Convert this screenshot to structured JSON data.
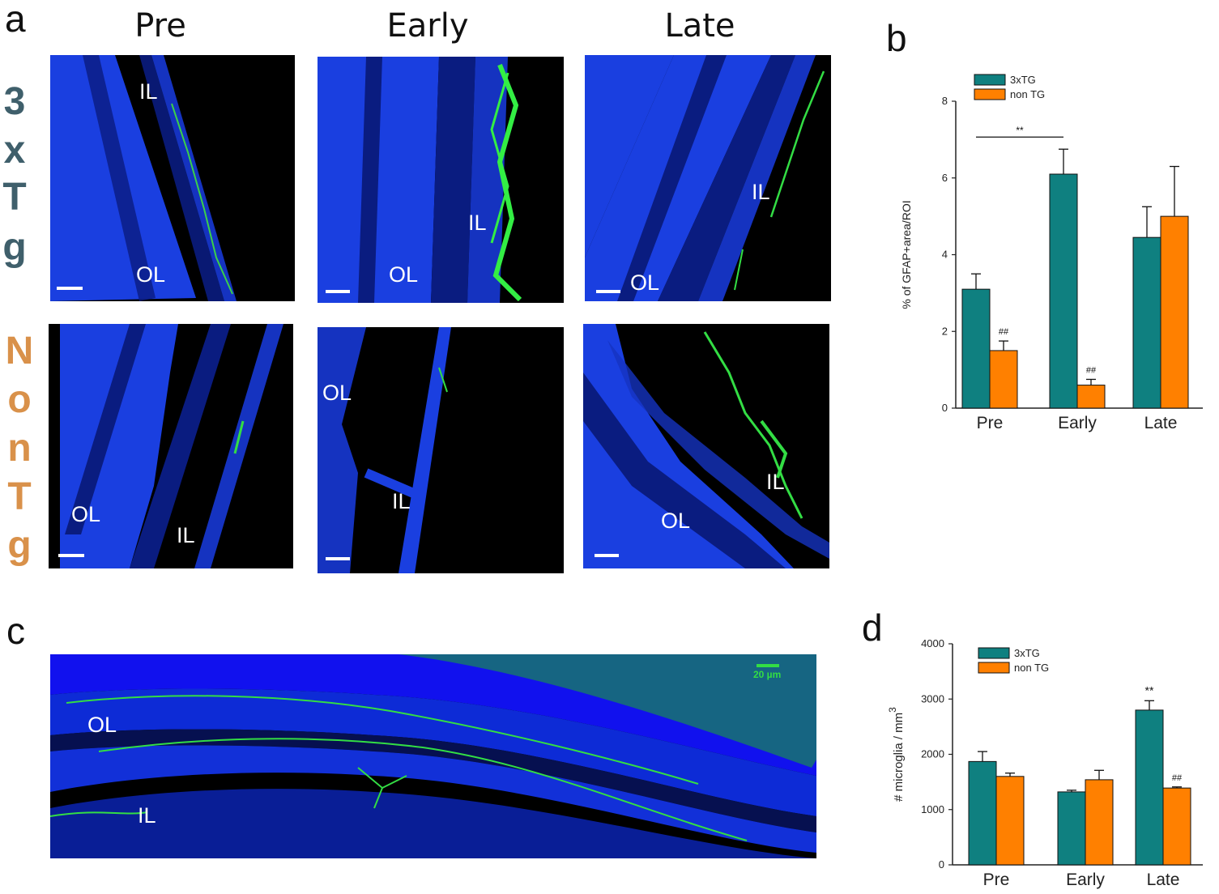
{
  "panels": {
    "a": "a",
    "b": "b",
    "c": "c",
    "d": "d"
  },
  "columns": [
    "Pre",
    "Early",
    "Late"
  ],
  "rows": {
    "top_letters": [
      "3",
      "x",
      "T",
      "g"
    ],
    "bottom_letters": [
      "N",
      "o",
      "n",
      "T",
      "g"
    ],
    "top_color": "#3f5f6b",
    "bottom_color": "#d9914a"
  },
  "tiles": [
    {
      "labels": [
        "IL",
        "OL"
      ]
    },
    {
      "labels": [
        "IL",
        "OL"
      ]
    },
    {
      "labels": [
        "IL",
        "OL"
      ]
    },
    {
      "labels": [
        "OL",
        "IL"
      ]
    },
    {
      "labels": [
        "OL",
        "IL"
      ]
    },
    {
      "labels": [
        "IL",
        "OL"
      ]
    }
  ],
  "panel_c": {
    "labels": [
      "OL",
      "IL"
    ],
    "scalebar_label": "20 µm"
  },
  "colors": {
    "teal": "#0f8080",
    "orange": "#ff8000",
    "nuclei": "#1144ff",
    "gfap": "#33dd44"
  },
  "chart_data": [
    {
      "panel": "b",
      "type": "bar",
      "categories": [
        "Pre",
        "Early",
        "Late"
      ],
      "series": [
        {
          "name": "3xTG",
          "values": [
            3.1,
            6.1,
            4.45
          ],
          "errors": [
            0.4,
            0.65,
            0.8
          ]
        },
        {
          "name": "non TG",
          "values": [
            1.5,
            0.6,
            5.0
          ],
          "errors": [
            0.25,
            0.15,
            1.3
          ]
        }
      ],
      "ylabel": "% of GFAP+area/ROI",
      "ylim": [
        0,
        8
      ],
      "yticks": [
        0,
        2,
        4,
        6,
        8
      ],
      "annotations": [
        {
          "text": "**",
          "between": [
            "Pre",
            "Early"
          ],
          "series": "3xTG"
        },
        {
          "text": "##",
          "category": "Pre",
          "series": "non TG"
        },
        {
          "text": "##",
          "category": "Early",
          "series": "non TG"
        }
      ],
      "legend": "top-left"
    },
    {
      "panel": "d",
      "type": "bar",
      "categories": [
        "Pre",
        "Early",
        "Late"
      ],
      "series": [
        {
          "name": "3xTG",
          "values": [
            1870,
            1320,
            2800
          ],
          "errors": [
            180,
            30,
            170
          ]
        },
        {
          "name": "non TG",
          "values": [
            1600,
            1540,
            1390
          ],
          "errors": [
            60,
            170,
            20
          ]
        }
      ],
      "ylabel": "# microglia / mm",
      "ylabel_superscript": "3",
      "ylim": [
        0,
        4000
      ],
      "yticks": [
        0,
        1000,
        2000,
        3000,
        4000
      ],
      "annotations": [
        {
          "text": "**",
          "category": "Late",
          "series": "3xTG"
        },
        {
          "text": "##",
          "category": "Late",
          "series": "non TG"
        }
      ],
      "legend": "top-left"
    }
  ]
}
